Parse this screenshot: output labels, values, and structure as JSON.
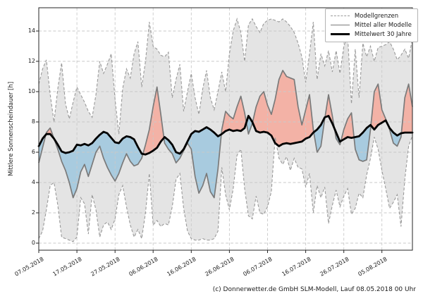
{
  "figure": {
    "footer": "(c) Donnerwetter.de GmbH SLM-Modell, Lauf 08.05.2018 00 Uhr"
  },
  "chart_data": {
    "type": "line",
    "title": "",
    "xlabel": "",
    "ylabel": "Mittlere Sonnenscheindauer [h]",
    "ylim": [
      -0.5,
      15.5
    ],
    "grid": true,
    "yticks": [
      0,
      2,
      4,
      6,
      8,
      10,
      12,
      14
    ],
    "xtick_days": [
      0,
      10,
      20,
      30,
      40,
      50,
      60,
      70,
      80,
      90
    ],
    "xtick_labels": [
      "07.05.2018",
      "17.05.2018",
      "27.05.2018",
      "06.06.2018",
      "16.06.2018",
      "26.06.2018",
      "06.07.2018",
      "16.07.2018",
      "26.07.2018",
      "05.08.2018"
    ],
    "legend": {
      "position": "upper right",
      "entries": [
        "Modellgrenzen",
        "Mittel aller Modelle",
        "Mittelwert 30 Jahre"
      ]
    },
    "colors": {
      "envelope": "#e4e4e4",
      "bound": "#999999",
      "mean": "#7a7a7a",
      "clim": "#000000",
      "above": "#f3b2a6",
      "below": "#a8cbdf",
      "grid": "#c9c9c9",
      "spine": "#262626"
    },
    "series": [
      {
        "name": "Modellgrenzen",
        "role": "upper",
        "values": [
          10.5,
          11.5,
          12.1,
          9.8,
          8.0,
          10.2,
          11.9,
          9.2,
          8.2,
          9.3,
          10.3,
          9.8,
          9.3,
          8.7,
          8.3,
          9.8,
          12.0,
          11.2,
          11.8,
          12.5,
          9.5,
          7.2,
          10.2,
          11.5,
          10.9,
          12.5,
          13.3,
          10.3,
          12.0,
          14.6,
          13.0,
          12.8,
          12.4,
          12.3,
          12.6,
          9.6,
          10.8,
          11.8,
          8.7,
          10.0,
          11.2,
          9.6,
          8.5,
          10.2,
          11.4,
          9.6,
          8.8,
          10.0,
          11.3,
          10.0,
          12.5,
          14.0,
          14.8,
          13.9,
          12.0,
          14.4,
          14.8,
          14.3,
          13.9,
          14.5,
          14.7,
          14.8,
          14.7,
          14.6,
          14.8,
          14.6,
          14.3,
          13.9,
          13.2,
          12.3,
          10.6,
          12.5,
          14.6,
          10.8,
          12.5,
          11.7,
          12.7,
          11.3,
          12.7,
          11.2,
          13.0,
          13.7,
          9.2,
          12.8,
          9.6,
          13.2,
          12.3,
          13.0,
          12.0,
          12.9,
          13.0,
          13.1,
          13.3,
          12.8,
          12.1,
          12.4,
          12.8,
          12.2,
          13.5
        ]
      },
      {
        "name": "Modellgrenzen",
        "role": "lower",
        "values": [
          0.3,
          0.8,
          2.2,
          3.8,
          4.0,
          2.5,
          0.4,
          0.3,
          0.2,
          0.1,
          0.4,
          3.0,
          2.6,
          0.6,
          3.2,
          2.2,
          0.4,
          1.2,
          1.4,
          0.9,
          1.6,
          3.2,
          3.8,
          2.4,
          1.2,
          0.4,
          0.9,
          0.3,
          2.0,
          4.6,
          1.2,
          1.5,
          1.1,
          1.3,
          1.2,
          2.4,
          4.2,
          4.6,
          2.3,
          0.8,
          0.3,
          0.2,
          0.2,
          0.3,
          0.2,
          0.2,
          0.3,
          0.8,
          5.0,
          3.2,
          2.2,
          3.6,
          5.8,
          6.2,
          3.6,
          1.8,
          1.6,
          3.1,
          2.0,
          1.9,
          2.4,
          3.4,
          7.0,
          5.6,
          5.2,
          5.7,
          4.8,
          5.6,
          5.0,
          4.9,
          3.7,
          4.6,
          2.0,
          3.8,
          3.0,
          3.7,
          1.3,
          2.5,
          3.5,
          2.4,
          3.1,
          3.6,
          1.9,
          2.3,
          3.3,
          3.0,
          4.5,
          5.6,
          7.0,
          6.2,
          4.8,
          3.6,
          2.3,
          2.7,
          3.2,
          1.1,
          4.2,
          6.4,
          7.1
        ]
      },
      {
        "name": "Mittel aller Modelle",
        "role": "mean",
        "values": [
          5.3,
          6.3,
          7.3,
          7.6,
          6.9,
          6.2,
          5.4,
          4.8,
          4.0,
          3.0,
          3.6,
          4.7,
          5.2,
          4.4,
          5.2,
          6.0,
          6.4,
          5.6,
          5.0,
          4.5,
          4.1,
          4.6,
          5.3,
          5.9,
          5.4,
          5.1,
          5.2,
          5.6,
          6.5,
          7.5,
          9.0,
          10.3,
          8.5,
          6.6,
          6.2,
          5.9,
          5.3,
          5.6,
          6.1,
          6.6,
          6.2,
          4.4,
          3.3,
          3.8,
          4.6,
          3.4,
          3.0,
          4.9,
          7.5,
          8.7,
          8.4,
          8.2,
          9.0,
          9.7,
          8.6,
          7.2,
          7.9,
          9.0,
          9.7,
          10.0,
          9.1,
          8.5,
          9.5,
          10.8,
          11.4,
          11.0,
          10.9,
          10.8,
          9.0,
          7.8,
          8.8,
          9.8,
          7.5,
          6.0,
          6.4,
          8.2,
          9.8,
          8.4,
          6.9,
          6.5,
          7.5,
          8.2,
          8.6,
          6.2,
          5.5,
          5.4,
          5.5,
          7.5,
          10.0,
          10.5,
          8.8,
          8.2,
          7.5,
          6.6,
          6.4,
          7.0,
          9.6,
          10.5,
          9.0
        ]
      },
      {
        "name": "Mittelwert 30 Jahre",
        "role": "clim",
        "values": [
          6.4,
          6.9,
          7.2,
          7.2,
          6.9,
          6.5,
          6.05,
          5.95,
          6.0,
          6.1,
          6.5,
          6.45,
          6.55,
          6.45,
          6.6,
          6.9,
          7.15,
          7.35,
          7.25,
          6.95,
          6.65,
          6.6,
          6.9,
          7.05,
          7.0,
          6.85,
          6.35,
          5.9,
          5.85,
          5.95,
          6.1,
          6.3,
          6.7,
          7.0,
          6.8,
          6.5,
          6.0,
          5.9,
          6.2,
          6.7,
          7.2,
          7.4,
          7.35,
          7.5,
          7.65,
          7.5,
          7.3,
          7.05,
          7.2,
          7.4,
          7.5,
          7.4,
          7.45,
          7.4,
          7.6,
          8.4,
          8.0,
          7.4,
          7.3,
          7.35,
          7.3,
          7.1,
          6.6,
          6.4,
          6.55,
          6.6,
          6.55,
          6.6,
          6.65,
          6.7,
          6.9,
          7.0,
          7.3,
          7.5,
          7.8,
          8.3,
          8.4,
          7.9,
          7.3,
          6.7,
          6.85,
          7.0,
          6.95,
          7.0,
          7.05,
          7.3,
          7.6,
          7.8,
          7.5,
          7.8,
          7.95,
          8.1,
          7.6,
          7.3,
          7.1,
          7.25,
          7.3,
          7.3,
          7.3
        ]
      }
    ]
  }
}
